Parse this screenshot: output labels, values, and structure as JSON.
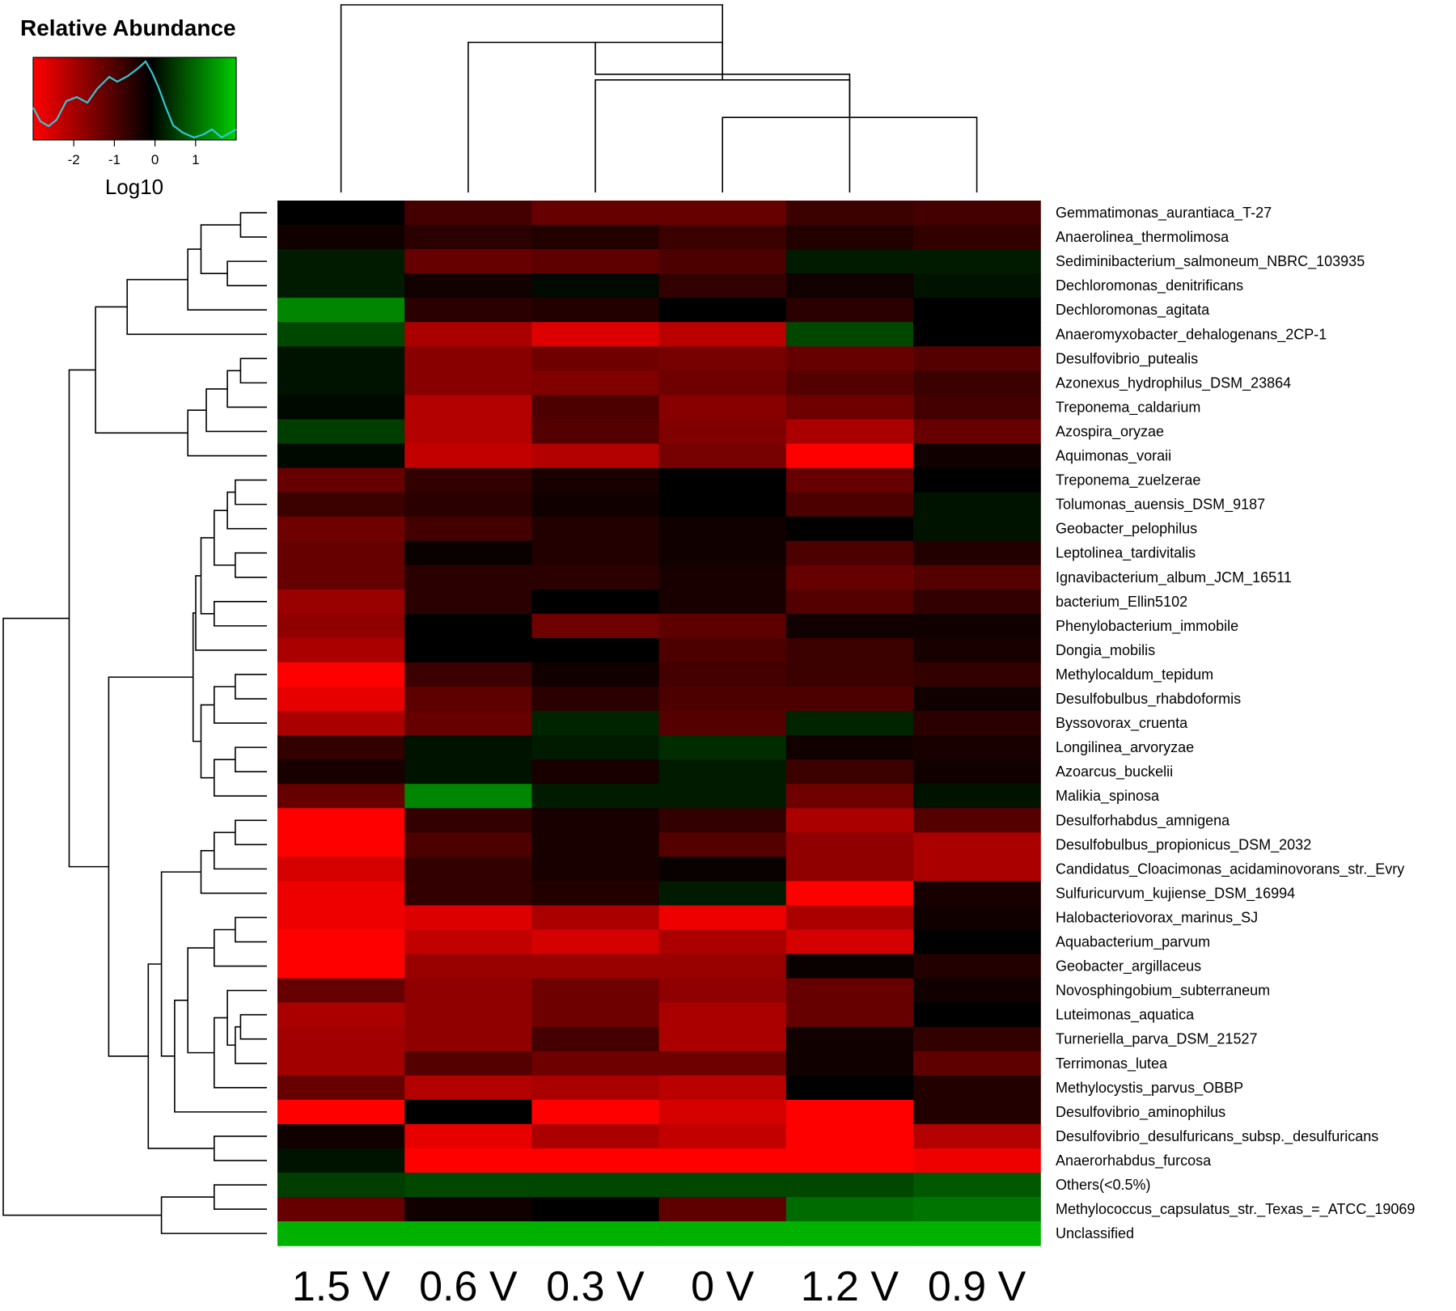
{
  "chart_data": {
    "type": "heatmap",
    "title": "",
    "legend": {
      "title": "Relative Abundance",
      "axis_label": "Log10",
      "ticks": [
        "-2",
        "-1",
        "0",
        "1"
      ],
      "tick_values": [
        -2,
        -1,
        0,
        1
      ],
      "range": [
        -3,
        2
      ],
      "colors": {
        "low": "#ff0000",
        "mid": "#000000",
        "high": "#00cc00",
        "density_line": "#33c6d6"
      }
    },
    "columns": [
      "1.5 V",
      "0.6 V",
      "0.3 V",
      "0 V",
      "1.2 V",
      "0.9 V"
    ],
    "rows": [
      "Gemmatimonas_aurantiaca_T-27",
      "Anaerolinea_thermolimosa",
      "Sediminibacterium_salmoneum_NBRC_103935",
      "Dechloromonas_denitrificans",
      "Dechloromonas_agitata",
      "Anaeromyxobacter_dehalogenans_2CP-1",
      "Desulfovibrio_putealis",
      "Azonexus_hydrophilus_DSM_23864",
      "Treponema_caldarium",
      "Azospira_oryzae",
      "Aquimonas_voraii",
      "Treponema_zuelzerae",
      "Tolumonas_auensis_DSM_9187",
      "Geobacter_pelophilus",
      "Leptolinea_tardivitalis",
      "Ignavibacterium_album_JCM_16511",
      "bacterium_Ellin5102",
      "Phenylobacterium_immobile",
      "Dongia_mobilis",
      "Methylocaldum_tepidum",
      "Desulfobulbus_rhabdoformis",
      "Byssovorax_cruenta",
      "Longilinea_arvoryzae",
      "Azoarcus_buckelii",
      "Malikia_spinosa",
      "Desulforhabdus_amnigena",
      "Desulfobulbus_propionicus_DSM_2032",
      "Candidatus_Cloacimonas_acidaminovorans_str._Evry",
      "Sulfuricurvum_kujiense_DSM_16994",
      "Halobacteriovorax_marinus_SJ",
      "Aquabacterium_parvum",
      "Geobacter_argillaceus",
      "Novosphingobium_subterraneum",
      "Luteimonas_aquatica",
      "Turneriella_parva_DSM_21527",
      "Terrimonas_lutea",
      "Methylocystis_parvus_OBBP",
      "Desulfovibrio_aminophilus",
      "Desulfovibrio_desulfuricans_subsp._desulfuricans",
      "Anaerorhabdus_furcosa",
      "Others(<0.5%)",
      "Methylococcus_capsulatus_str._Texas_=_ATCC_19069",
      "Unclassified"
    ],
    "values": [
      [
        0.0,
        -0.8,
        -1.2,
        -1.2,
        -0.7,
        -0.8
      ],
      [
        -0.2,
        -0.5,
        -0.4,
        -0.7,
        -0.4,
        -0.6
      ],
      [
        0.3,
        -1.2,
        -1.1,
        -0.9,
        0.3,
        0.3
      ],
      [
        0.3,
        -0.2,
        0.1,
        -0.6,
        -0.2,
        0.2
      ],
      [
        1.5,
        -0.5,
        -0.4,
        0.0,
        -0.5,
        0.0
      ],
      [
        0.8,
        -2.0,
        -2.6,
        -2.2,
        0.8,
        0.0
      ],
      [
        0.2,
        -1.6,
        -1.3,
        -1.4,
        -1.2,
        -1.0
      ],
      [
        0.2,
        -1.6,
        -1.5,
        -1.3,
        -1.0,
        -0.7
      ],
      [
        0.1,
        -2.1,
        -0.9,
        -1.6,
        -1.3,
        -0.8
      ],
      [
        0.7,
        -2.1,
        -1.0,
        -1.5,
        -2.0,
        -1.2
      ],
      [
        0.1,
        -2.3,
        -2.1,
        -1.4,
        -3.0,
        -0.2
      ],
      [
        -1.2,
        -0.6,
        -0.3,
        0.0,
        -1.2,
        0.0
      ],
      [
        -0.7,
        -0.5,
        -0.2,
        0.0,
        -0.9,
        0.2
      ],
      [
        -1.3,
        -0.8,
        -0.4,
        -0.2,
        0.0,
        0.2
      ],
      [
        -1.2,
        -0.1,
        -0.4,
        -0.2,
        -0.9,
        -0.4
      ],
      [
        -1.2,
        -0.5,
        -0.5,
        -0.3,
        -1.2,
        -1.0
      ],
      [
        -1.8,
        -0.5,
        0.0,
        -0.3,
        -1.0,
        -0.6
      ],
      [
        -1.7,
        0.0,
        -1.3,
        -1.1,
        -0.2,
        -0.2
      ],
      [
        -2.0,
        0.0,
        0.0,
        -0.9,
        -0.7,
        -0.3
      ],
      [
        -3.0,
        -0.7,
        -0.2,
        -0.8,
        -0.7,
        -0.6
      ],
      [
        -2.7,
        -1.1,
        -0.5,
        -0.9,
        -0.9,
        -0.2
      ],
      [
        -2.0,
        -1.2,
        0.4,
        -1.0,
        0.4,
        -0.5
      ],
      [
        -0.6,
        0.2,
        0.3,
        0.5,
        -0.2,
        -0.3
      ],
      [
        -0.3,
        0.2,
        -0.3,
        0.3,
        -0.7,
        -0.2
      ],
      [
        -1.2,
        1.5,
        0.3,
        0.3,
        -1.3,
        0.2
      ],
      [
        -3.0,
        -0.6,
        -0.3,
        -0.6,
        -2.0,
        -1.0
      ],
      [
        -3.0,
        -0.9,
        -0.3,
        -1.0,
        -1.7,
        -2.0
      ],
      [
        -2.5,
        -0.6,
        -0.3,
        -0.1,
        -1.7,
        -2.0
      ],
      [
        -2.8,
        -0.6,
        -0.4,
        0.3,
        -3.0,
        -0.3
      ],
      [
        -2.8,
        -2.6,
        -2.0,
        -2.8,
        -2.0,
        -0.2
      ],
      [
        -3.0,
        -2.3,
        -2.5,
        -2.0,
        -2.5,
        0.0
      ],
      [
        -3.0,
        -1.8,
        -1.8,
        -1.8,
        -0.1,
        -0.4
      ],
      [
        -1.2,
        -1.7,
        -1.3,
        -1.7,
        -1.2,
        -0.2
      ],
      [
        -2.0,
        -1.7,
        -1.3,
        -2.0,
        -1.2,
        0.0
      ],
      [
        -1.9,
        -1.7,
        -0.8,
        -2.0,
        -0.2,
        -0.6
      ],
      [
        -1.9,
        -1.0,
        -1.3,
        -1.3,
        -0.2,
        -1.1
      ],
      [
        -1.2,
        -2.1,
        -2.0,
        -2.2,
        0.0,
        -0.4
      ],
      [
        -3.0,
        0.0,
        -3.0,
        -2.5,
        -3.0,
        -0.4
      ],
      [
        -0.2,
        -2.7,
        -2.0,
        -2.3,
        -3.0,
        -2.1
      ],
      [
        0.2,
        -3.0,
        -3.0,
        -3.0,
        -3.0,
        -2.8
      ],
      [
        0.7,
        0.8,
        0.8,
        0.8,
        0.8,
        1.0
      ],
      [
        -1.2,
        -0.2,
        0.0,
        -1.1,
        1.2,
        1.3
      ],
      [
        2.0,
        2.0,
        2.0,
        2.0,
        2.0,
        2.0
      ]
    ],
    "column_dendrogram": [
      [
        3,
        5,
        0.4
      ],
      [
        2,
        6,
        0.6
      ],
      [
        1,
        7,
        0.8
      ],
      [
        4,
        8,
        0.63
      ],
      [
        0,
        9,
        1.0
      ]
    ],
    "row_dendrogram": [
      [
        0,
        1,
        0.1
      ],
      [
        2,
        3,
        0.15
      ],
      [
        43,
        44,
        0.25
      ],
      [
        45,
        4,
        0.3
      ],
      [
        46,
        5,
        0.53
      ],
      [
        6,
        7,
        0.1
      ],
      [
        48,
        8,
        0.15
      ],
      [
        49,
        9,
        0.23
      ],
      [
        50,
        10,
        0.3
      ],
      [
        47,
        51,
        0.65
      ],
      [
        11,
        12,
        0.12
      ],
      [
        53,
        13,
        0.15
      ],
      [
        14,
        15,
        0.12
      ],
      [
        54,
        55,
        0.2
      ],
      [
        16,
        17,
        0.2
      ],
      [
        56,
        57,
        0.25
      ],
      [
        58,
        18,
        0.27
      ],
      [
        19,
        20,
        0.12
      ],
      [
        60,
        21,
        0.2
      ],
      [
        22,
        23,
        0.12
      ],
      [
        62,
        24,
        0.2
      ],
      [
        61,
        63,
        0.25
      ],
      [
        59,
        64,
        0.28
      ],
      [
        25,
        26,
        0.12
      ],
      [
        66,
        27,
        0.2
      ],
      [
        67,
        28,
        0.25
      ],
      [
        29,
        30,
        0.12
      ],
      [
        69,
        31,
        0.2
      ],
      [
        33,
        34,
        0.1
      ],
      [
        71,
        35,
        0.12
      ],
      [
        32,
        72,
        0.15
      ],
      [
        73,
        36,
        0.2
      ],
      [
        70,
        74,
        0.3
      ],
      [
        75,
        37,
        0.35
      ],
      [
        38,
        39,
        0.2
      ],
      [
        68,
        76,
        0.4
      ],
      [
        78,
        77,
        0.45
      ],
      [
        65,
        79,
        0.6
      ],
      [
        52,
        80,
        0.75
      ],
      [
        40,
        41,
        0.2
      ],
      [
        82,
        42,
        0.4
      ],
      [
        81,
        83,
        1.0
      ]
    ]
  }
}
